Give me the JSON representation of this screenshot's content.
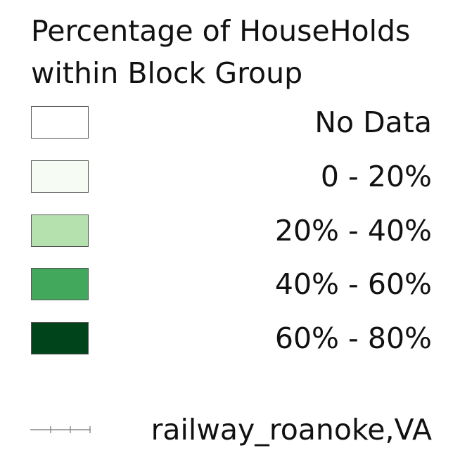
{
  "legend": {
    "title_line1": "Percentage of HouseHolds",
    "title_line2": "within Block Group",
    "classes": [
      {
        "label": "No Data",
        "color": "#ffffff"
      },
      {
        "label": "0 - 20%",
        "color": "#f6fbf4"
      },
      {
        "label": "20% - 40%",
        "color": "#b5e1ae"
      },
      {
        "label": "40% - 60%",
        "color": "#41a85c"
      },
      {
        "label": "60% - 80%",
        "color": "#00441c"
      }
    ],
    "railway": {
      "label": "railway_roanoke,VA",
      "line_color": "#888888"
    }
  }
}
